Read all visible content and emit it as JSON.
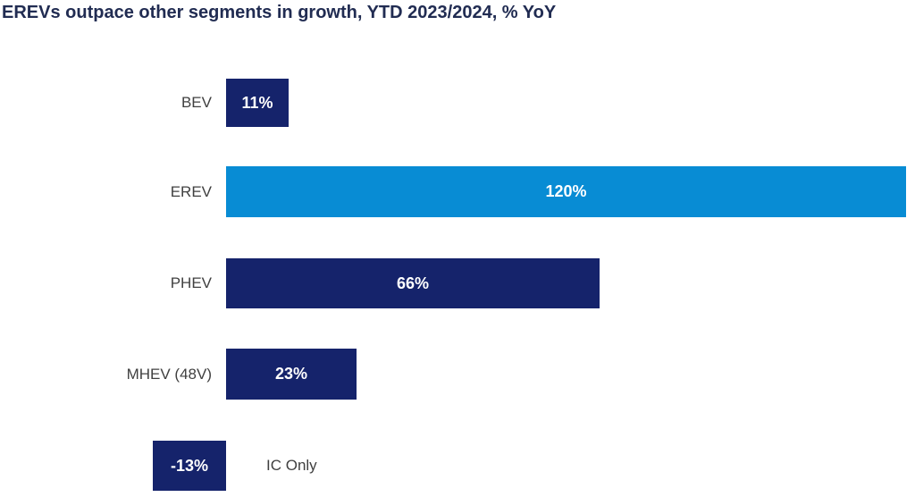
{
  "title": "EREVs outpace other segments in growth, YTD 2023/2024, % YoY",
  "chart_data": {
    "type": "bar",
    "orientation": "horizontal",
    "title": "EREVs outpace other segments in growth, YTD 2023/2024, % YoY",
    "categories": [
      "BEV",
      "EREV",
      "PHEV",
      "MHEV (48V)",
      "IC Only"
    ],
    "values": [
      11,
      120,
      66,
      23,
      -13
    ],
    "value_labels": [
      "11%",
      "120%",
      "66%",
      "23%",
      "-13%"
    ],
    "unit": "% YoY",
    "xlim": [
      -13,
      120
    ],
    "grid": false,
    "legend": "none",
    "axis_ticks": "none",
    "highlighted_category": "EREV",
    "bar_colors": [
      "#15236b",
      "#088cd4",
      "#15236b",
      "#15236b",
      "#15236b"
    ],
    "colors": {
      "default_bar": "#15236b",
      "highlight_bar": "#088cd4",
      "value_text": "#ffffff",
      "category_text": "#404040",
      "title_text": "#212c52",
      "background": "#ffffff"
    }
  }
}
